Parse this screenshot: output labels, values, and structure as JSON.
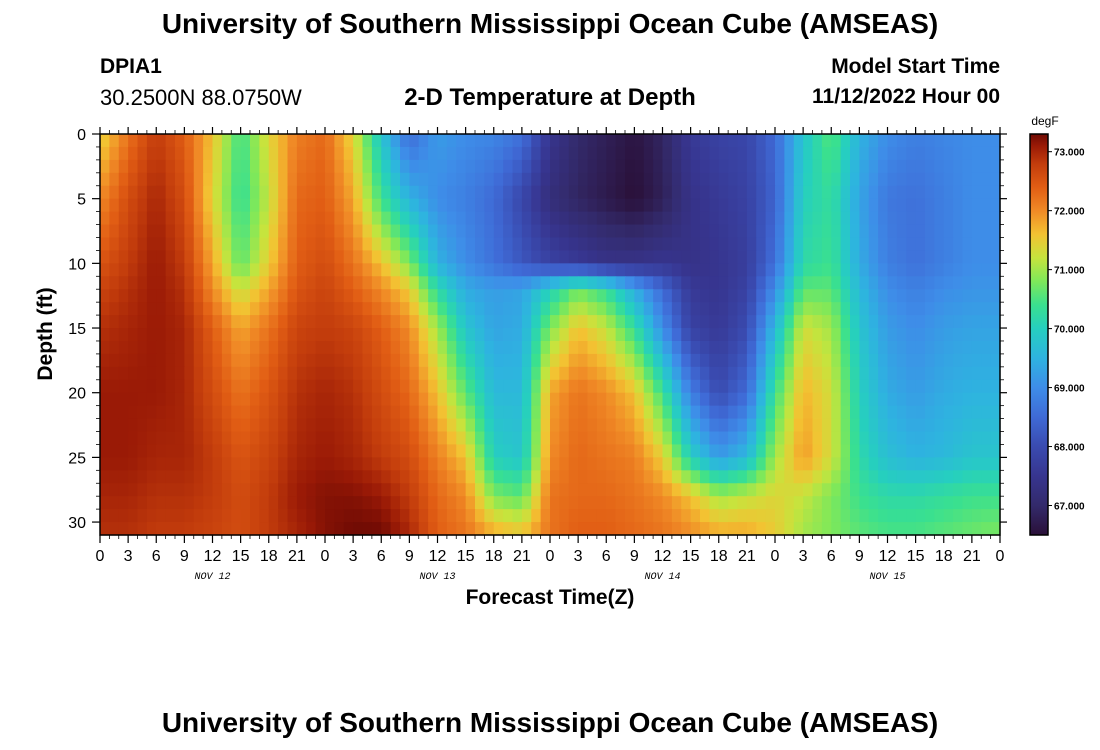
{
  "header": {
    "title": "University of Southern Mississippi Ocean Cube (AMSEAS)",
    "station": "DPIA1",
    "coords": "30.2500N  88.0750W",
    "subtitle": "2-D Temperature at Depth",
    "model_start_label": "Model Start Time",
    "model_start_value": "11/12/2022 Hour 00"
  },
  "footer": {
    "title": "University of Southern Mississippi Ocean Cube (AMSEAS)"
  },
  "chart_data": {
    "type": "heatmap",
    "title": "2-D Temperature at Depth",
    "xlabel": "Forecast Time(Z)",
    "ylabel": "Depth (ft)",
    "x_ticks": [
      "0",
      "3",
      "6",
      "9",
      "12",
      "15",
      "18",
      "21",
      "0",
      "3",
      "6",
      "9",
      "12",
      "15",
      "18",
      "21",
      "0",
      "3",
      "6",
      "9",
      "12",
      "15",
      "18",
      "21",
      "0",
      "3",
      "6",
      "9",
      "12",
      "15",
      "18",
      "21",
      "0"
    ],
    "x_range_hours": [
      0,
      96
    ],
    "day_labels": [
      {
        "label": "NOV 12",
        "hour": 12
      },
      {
        "label": "NOV 13",
        "hour": 36
      },
      {
        "label": "NOV 14",
        "hour": 60
      },
      {
        "label": "NOV 15",
        "hour": 84
      }
    ],
    "y_ticks": [
      "0",
      "5",
      "10",
      "15",
      "20",
      "25",
      "30"
    ],
    "y_range_ft": [
      0,
      31
    ],
    "colorbar": {
      "unit": "degF",
      "min": 66.5,
      "max": 73.3,
      "ticks": [
        "73.000",
        "72.000",
        "71.000",
        "70.000",
        "69.000",
        "68.000",
        "67.000"
      ],
      "tick_values": [
        73,
        72,
        71,
        70,
        69,
        68,
        67
      ]
    },
    "colormap": [
      [
        66.5,
        "#2a1038"
      ],
      [
        67.0,
        "#332a6b"
      ],
      [
        67.5,
        "#37358f"
      ],
      [
        68.0,
        "#3a4bb0"
      ],
      [
        68.5,
        "#3f6ad6"
      ],
      [
        69.0,
        "#3e8de8"
      ],
      [
        69.5,
        "#2eb3e0"
      ],
      [
        70.0,
        "#26cfbf"
      ],
      [
        70.4,
        "#3ae08f"
      ],
      [
        70.8,
        "#7ee85a"
      ],
      [
        71.2,
        "#c6e43d"
      ],
      [
        71.6,
        "#f3c232"
      ],
      [
        72.0,
        "#f08a26"
      ],
      [
        72.4,
        "#e15d14"
      ],
      [
        72.8,
        "#c23c0c"
      ],
      [
        73.1,
        "#9a1a06"
      ],
      [
        73.3,
        "#6e0a04"
      ]
    ],
    "depth_levels_ft": [
      0,
      5,
      10,
      12,
      15,
      20,
      25,
      28,
      31
    ],
    "time_hours": [
      0,
      3,
      6,
      9,
      12,
      15,
      18,
      21,
      24,
      27,
      30,
      33,
      36,
      39,
      42,
      45,
      48,
      51,
      54,
      57,
      60,
      63,
      66,
      69,
      72,
      75,
      78,
      81,
      84,
      87,
      90,
      93,
      96
    ],
    "temperature_grid_degF": [
      [
        71.4,
        72.2,
        72.8,
        72.4,
        71.6,
        70.4,
        71.4,
        72.1,
        72.3,
        71.4,
        69.8,
        68.5,
        69.2,
        69.0,
        68.9,
        68.6,
        67.5,
        67.0,
        66.8,
        66.6,
        66.9,
        67.6,
        67.8,
        67.9,
        68.5,
        69.8,
        70.6,
        69.5,
        69.0,
        68.8,
        68.9,
        69.0,
        69.0
      ],
      [
        72.0,
        72.6,
        73.0,
        72.6,
        71.4,
        70.3,
        71.2,
        72.3,
        72.4,
        71.8,
        70.4,
        69.5,
        69.0,
        68.8,
        68.5,
        67.9,
        67.2,
        66.9,
        66.7,
        66.5,
        66.8,
        67.4,
        67.6,
        67.8,
        68.4,
        70.0,
        70.3,
        69.3,
        68.7,
        68.6,
        68.8,
        69.0,
        69.0
      ],
      [
        72.5,
        72.8,
        73.1,
        72.8,
        71.8,
        70.6,
        71.5,
        72.4,
        72.6,
        72.2,
        71.6,
        70.8,
        69.5,
        69.0,
        68.6,
        68.2,
        67.8,
        67.6,
        67.4,
        67.4,
        67.5,
        67.4,
        67.5,
        67.7,
        68.6,
        70.2,
        70.4,
        69.4,
        68.8,
        68.6,
        68.8,
        69.0,
        69.0
      ],
      [
        72.7,
        72.9,
        73.1,
        72.9,
        72.0,
        71.2,
        71.8,
        72.5,
        72.7,
        72.4,
        72.0,
        71.5,
        70.2,
        69.4,
        69.2,
        69.3,
        70.0,
        70.7,
        70.3,
        69.4,
        68.5,
        67.6,
        67.5,
        67.8,
        69.0,
        70.6,
        70.6,
        69.6,
        69.0,
        68.8,
        69.0,
        69.1,
        69.1
      ],
      [
        72.9,
        73.0,
        73.1,
        73.0,
        72.4,
        71.8,
        72.2,
        72.7,
        72.8,
        72.7,
        72.4,
        72.0,
        71.0,
        69.8,
        69.3,
        69.4,
        70.8,
        71.6,
        71.2,
        70.3,
        69.0,
        67.8,
        67.6,
        68.0,
        69.6,
        71.3,
        71.0,
        69.8,
        69.2,
        69.0,
        69.2,
        69.3,
        69.3
      ],
      [
        73.1,
        73.1,
        73.1,
        73.0,
        72.6,
        72.2,
        72.5,
        72.9,
        73.0,
        72.9,
        72.6,
        72.3,
        71.6,
        70.6,
        69.6,
        69.6,
        71.8,
        72.2,
        72.0,
        71.6,
        70.4,
        68.8,
        68.0,
        68.5,
        70.4,
        71.7,
        71.3,
        70.0,
        69.4,
        69.2,
        69.4,
        69.5,
        69.5
      ],
      [
        73.1,
        73.1,
        73.0,
        73.0,
        72.8,
        72.5,
        72.7,
        73.0,
        73.1,
        73.0,
        72.8,
        72.6,
        72.1,
        71.6,
        70.0,
        69.8,
        72.0,
        72.3,
        72.2,
        72.1,
        71.5,
        70.0,
        69.2,
        69.6,
        71.0,
        71.9,
        71.3,
        70.2,
        69.7,
        69.5,
        69.6,
        69.8,
        69.8
      ],
      [
        73.0,
        73.0,
        72.9,
        72.9,
        72.8,
        72.6,
        72.8,
        73.1,
        73.2,
        73.2,
        73.1,
        72.8,
        72.3,
        72.0,
        70.8,
        70.6,
        72.2,
        72.3,
        72.3,
        72.2,
        72.0,
        71.6,
        71.0,
        71.2,
        71.4,
        71.2,
        70.8,
        70.4,
        70.2,
        70.2,
        70.3,
        70.4,
        70.4
      ],
      [
        72.9,
        72.9,
        72.8,
        72.8,
        72.7,
        72.6,
        72.8,
        73.0,
        73.2,
        73.3,
        73.3,
        73.0,
        72.4,
        72.2,
        71.8,
        71.6,
        72.2,
        72.4,
        72.4,
        72.3,
        72.2,
        72.0,
        71.8,
        71.8,
        71.5,
        71.0,
        70.8,
        70.6,
        70.5,
        70.5,
        70.6,
        70.7,
        70.8
      ]
    ]
  }
}
